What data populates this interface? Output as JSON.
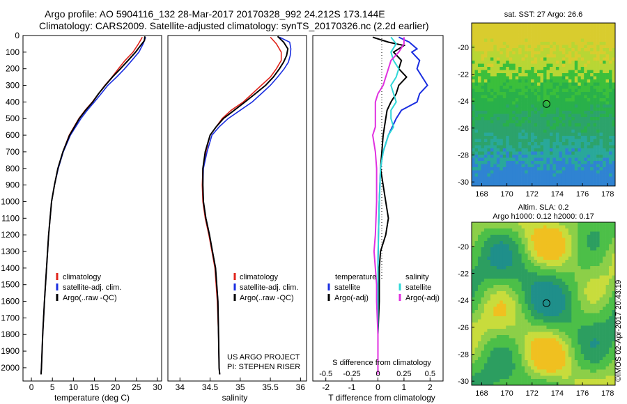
{
  "title": {
    "line1": "Argo profile: AO 5904116_132 28-Mar-2017 20170328_992 24.212S 173.144E",
    "line2": "Climatology: CARS2009. Satellite-adjusted climatology: synTS_20170326.nc (2.2d earlier)"
  },
  "colors": {
    "climatology": "#e0241b",
    "satellite": "#1a2ee0",
    "argo": "#000000",
    "cyan": "#2fd8d8",
    "magenta": "#e030e0"
  },
  "chart_data": [
    {
      "type": "line",
      "id": "temperature",
      "xlabel": "temperature (deg C)",
      "ylabel": "",
      "xlim": [
        -2,
        31
      ],
      "ylim": [
        2080,
        0
      ],
      "xticks": [
        0,
        5,
        10,
        15,
        20,
        25,
        30
      ],
      "yticks": [
        0,
        100,
        200,
        300,
        400,
        500,
        600,
        700,
        800,
        900,
        1000,
        1100,
        1200,
        1300,
        1400,
        1500,
        1600,
        1700,
        1800,
        1900,
        2000
      ],
      "legend": {
        "position": "lower-middle",
        "entries": [
          "climatology",
          "satellite-adj. clim.",
          "Argo(..raw -QC)"
        ]
      },
      "series": [
        {
          "name": "climatology",
          "color_key": "climatology",
          "depth": [
            10,
            50,
            100,
            150,
            200,
            250,
            300,
            350,
            400,
            450,
            500,
            600,
            700,
            800,
            900,
            1000,
            1200,
            1400,
            1600,
            1800,
            2000,
            2040
          ],
          "values": [
            26.4,
            25.5,
            24.2,
            22.3,
            20.7,
            19.2,
            17.5,
            16.0,
            14.5,
            12.8,
            11.3,
            9.0,
            7.5,
            6.3,
            5.5,
            4.8,
            4.1,
            3.6,
            3.1,
            2.7,
            2.4,
            2.3
          ]
        },
        {
          "name": "satellite-adj. clim.",
          "color_key": "satellite",
          "depth": [
            10,
            50,
            100,
            150,
            200,
            250,
            300,
            350,
            400,
            450,
            500,
            600,
            700,
            800,
            900,
            1000,
            1200,
            1400,
            1600,
            1800,
            2000,
            2040
          ],
          "values": [
            27.2,
            26.6,
            25.6,
            23.9,
            22.2,
            20.3,
            18.2,
            16.6,
            15.0,
            13.3,
            11.8,
            9.3,
            7.6,
            6.4,
            5.5,
            4.8,
            4.1,
            3.6,
            3.1,
            2.7,
            2.4,
            2.3
          ]
        },
        {
          "name": "Argo(..raw -QC)",
          "color_key": "argo",
          "depth": [
            5,
            30,
            60,
            100,
            150,
            200,
            250,
            300,
            350,
            400,
            450,
            500,
            600,
            700,
            800,
            900,
            1000,
            1200,
            1400,
            1600,
            1800,
            2000,
            2040
          ],
          "values": [
            27.0,
            26.9,
            26.0,
            24.8,
            23.0,
            21.2,
            19.3,
            17.6,
            16.0,
            14.6,
            12.9,
            11.4,
            9.1,
            7.5,
            6.3,
            5.5,
            4.8,
            4.1,
            3.6,
            3.1,
            2.7,
            2.4,
            2.3
          ]
        }
      ]
    },
    {
      "type": "line",
      "id": "salinity",
      "xlabel": "salinity",
      "ylabel": "",
      "xlim": [
        33.8,
        36.1
      ],
      "ylim": [
        2080,
        0
      ],
      "xticks": [
        34,
        34.5,
        35,
        35.5,
        36
      ],
      "legend": {
        "position": "lower-middle",
        "entries": [
          "climatology",
          "satellite-adj. clim.",
          "Argo(..raw -QC)"
        ]
      },
      "annotations": [
        "US ARGO PROJECT",
        "PI: STEPHEN RISER"
      ],
      "series": [
        {
          "name": "climatology",
          "color_key": "climatology",
          "depth": [
            10,
            50,
            100,
            150,
            200,
            250,
            300,
            350,
            400,
            450,
            500,
            550,
            600,
            700,
            800,
            900,
            1000,
            1100,
            1200,
            1300,
            1400,
            1600,
            1800,
            2000,
            2040
          ],
          "values": [
            35.5,
            35.6,
            35.68,
            35.68,
            35.6,
            35.5,
            35.35,
            35.2,
            35.05,
            34.85,
            34.7,
            34.6,
            34.5,
            34.43,
            34.38,
            34.37,
            34.38,
            34.42,
            34.48,
            34.53,
            34.58,
            34.62,
            34.64,
            34.65,
            34.66
          ]
        },
        {
          "name": "satellite-adj. clim.",
          "color_key": "satellite",
          "depth": [
            10,
            40,
            80,
            120,
            160,
            200,
            250,
            300,
            350,
            400,
            450,
            500,
            550,
            600,
            700,
            800,
            900,
            1000,
            1100,
            1200,
            1300,
            1400,
            1600,
            1800,
            2000,
            2040
          ],
          "values": [
            35.65,
            35.82,
            35.84,
            35.83,
            35.8,
            35.73,
            35.62,
            35.5,
            35.35,
            35.2,
            35.0,
            34.8,
            34.65,
            34.53,
            34.45,
            34.39,
            34.38,
            34.39,
            34.43,
            34.49,
            34.54,
            34.59,
            34.63,
            34.64,
            34.65,
            34.66
          ]
        },
        {
          "name": "Argo(..raw -QC)",
          "color_key": "argo",
          "depth": [
            5,
            40,
            80,
            120,
            160,
            200,
            250,
            300,
            350,
            400,
            450,
            500,
            550,
            600,
            700,
            800,
            900,
            1000,
            1100,
            1200,
            1300,
            1400,
            1600,
            1800,
            2000,
            2040
          ],
          "values": [
            35.62,
            35.72,
            35.79,
            35.77,
            35.72,
            35.65,
            35.55,
            35.42,
            35.25,
            35.08,
            34.9,
            34.72,
            34.6,
            34.5,
            34.42,
            34.38,
            34.38,
            34.39,
            34.43,
            34.49,
            34.54,
            34.59,
            34.63,
            34.64,
            34.65,
            34.66
          ]
        }
      ]
    },
    {
      "type": "line",
      "id": "differences",
      "xlabel": "T difference from climatology",
      "xlim": [
        -2.5,
        2.5
      ],
      "ylim": [
        2080,
        0
      ],
      "xticks_T": [
        -2,
        -1,
        0,
        1,
        2
      ],
      "xticks_S_labels": [
        "-0.5",
        "-0.25",
        "0",
        "0.25",
        "0.5"
      ],
      "xticks_S_pos": [
        -2,
        -1,
        0,
        1,
        2
      ],
      "s_axis_label": "S difference from climatology",
      "legend": {
        "position": "lower-middle",
        "temperature_heading": "temperature",
        "salinity_heading": "salinity",
        "entries": [
          "satellite",
          "Argo(-adj)",
          "satellite",
          "Argo(-adj)"
        ]
      },
      "series": [
        {
          "name": "satellite",
          "group": "temperature",
          "color_key": "satellite",
          "depth": [
            10,
            40,
            80,
            100,
            150,
            200,
            250,
            300,
            350,
            400,
            450,
            500,
            600,
            700,
            800,
            1000,
            1200,
            1400,
            1600,
            1800,
            2000,
            2040
          ],
          "values": [
            0.8,
            1.2,
            1.5,
            1.3,
            1.6,
            1.5,
            1.7,
            1.9,
            1.6,
            1.5,
            0.9,
            0.7,
            0.4,
            0.2,
            0.1,
            0.05,
            0.02,
            0.0,
            0.0,
            0.0,
            0.0,
            0.0
          ]
        },
        {
          "name": "Argo(-adj)",
          "group": "temperature",
          "color_key": "argo",
          "depth": [
            10,
            40,
            60,
            100,
            150,
            200,
            250,
            300,
            350,
            400,
            450,
            500,
            600,
            700,
            800,
            1000,
            1100,
            1200,
            1300,
            1400,
            1600,
            1800,
            2000,
            2040
          ],
          "values": [
            -0.2,
            0.4,
            1.0,
            0.6,
            0.9,
            0.8,
            1.1,
            0.8,
            0.7,
            0.5,
            0.35,
            0.3,
            0.2,
            0.15,
            0.1,
            0.3,
            0.4,
            0.3,
            0.1,
            0.05,
            0.05,
            0.0,
            0.0,
            0.0
          ]
        },
        {
          "name": "satellite",
          "group": "salinity",
          "color_key": "cyan",
          "depth": [
            10,
            50,
            100,
            150,
            200,
            250,
            300,
            350,
            400,
            450,
            500,
            550,
            600,
            700,
            800,
            1000,
            1200,
            1400,
            1600,
            1800,
            2000,
            2040
          ],
          "values": [
            0.5,
            0.7,
            0.5,
            0.6,
            0.8,
            0.7,
            0.5,
            0.6,
            0.7,
            0.5,
            0.5,
            0.6,
            0.4,
            0.2,
            0.1,
            0.05,
            0.02,
            0.0,
            0.0,
            0.0,
            0.0,
            0.0
          ]
        },
        {
          "name": "Argo(-adj)",
          "group": "salinity",
          "color_key": "magenta",
          "depth": [
            10,
            50,
            100,
            150,
            200,
            250,
            300,
            350,
            400,
            450,
            500,
            550,
            600,
            700,
            800,
            1000,
            1200,
            1300,
            1400,
            1500,
            1600,
            1800,
            2000,
            2040
          ],
          "values": [
            1.0,
            1.0,
            0.8,
            0.5,
            0.4,
            0.3,
            0.2,
            0.0,
            -0.1,
            -0.1,
            -0.1,
            -0.1,
            -0.2,
            -0.1,
            -0.05,
            -0.05,
            -0.1,
            -0.15,
            -0.1,
            -0.05,
            -0.05,
            0.0,
            0.0,
            0.0
          ]
        }
      ]
    },
    {
      "type": "heatmap",
      "id": "sst-map",
      "title": "sat. SST: 27  Argo: 26.6",
      "xticks": [
        168,
        170,
        172,
        174,
        176,
        178
      ],
      "yticks": [
        -20,
        -22,
        -24,
        -26,
        -28,
        -30
      ],
      "xlim": [
        167.2,
        178.6
      ],
      "ylim": [
        -30.3,
        -18.2
      ],
      "marker": {
        "lon": 173.144,
        "lat": -24.212
      }
    },
    {
      "type": "heatmap",
      "id": "sla-map",
      "title": "Altim. SLA: 0.2",
      "subtitle": "Argo h1000: 0.12 h2000: 0.17",
      "xticks": [
        168,
        170,
        172,
        174,
        176,
        178
      ],
      "yticks": [
        -20,
        -22,
        -24,
        -26,
        -28,
        -30
      ],
      "xlim": [
        167.2,
        178.6
      ],
      "ylim": [
        -30.3,
        -18.2
      ],
      "marker": {
        "lon": 173.144,
        "lat": -24.212
      }
    }
  ],
  "stamp": "©IMOS 02-Apr-2017 20:43:19"
}
